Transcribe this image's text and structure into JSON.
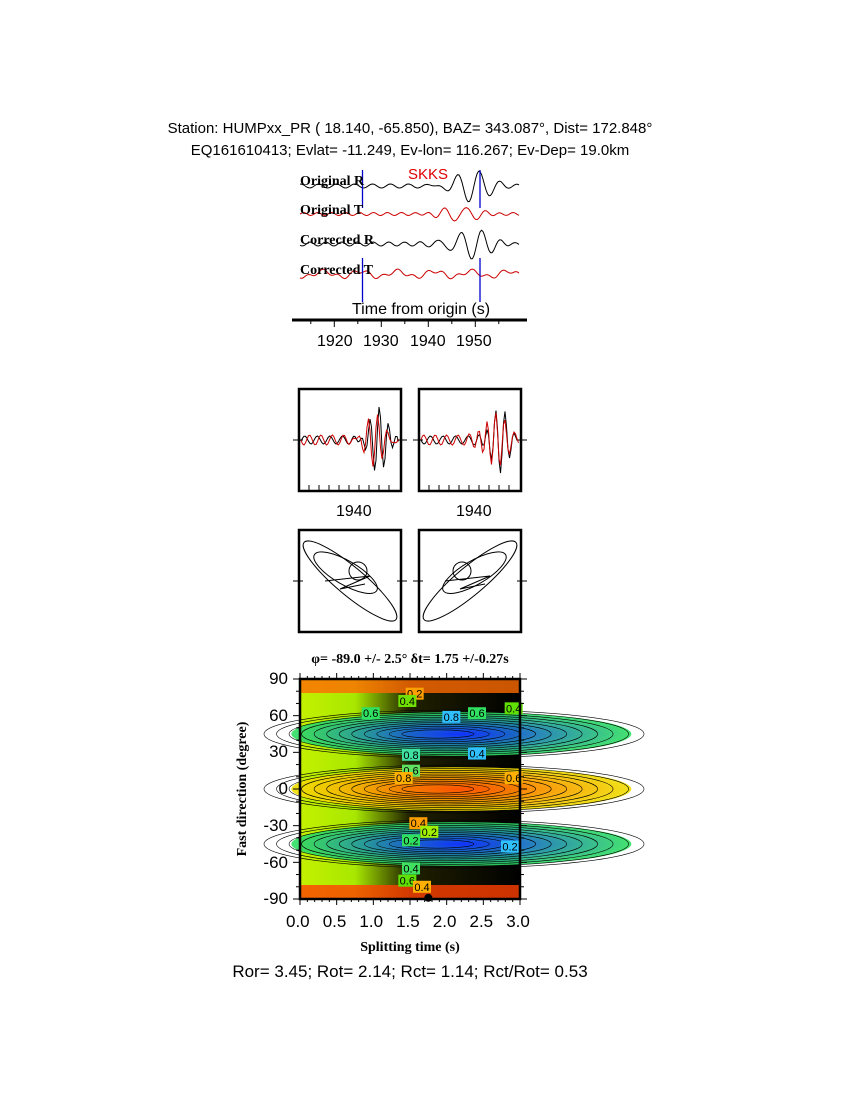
{
  "header": {
    "line1": "Station: HUMPxx_PR (  18.140,  -65.850), BAZ=  343.087°, Dist=  172.848°",
    "line2": "EQ161610413; Evlat= -11.249, Ev-lon= 116.267; Ev-Dep= 19.0km"
  },
  "chart_data": [
    {
      "type": "line",
      "title": "",
      "phase_label": "SKKS",
      "xlabel": "Time from origin (s)",
      "xticks": [
        "1920",
        "1930",
        "1940",
        "1950"
      ],
      "xlim": [
        1911,
        1961
      ],
      "series": [
        {
          "name": "Original R",
          "color": "#000000"
        },
        {
          "name": "Original T",
          "color": "#cc0000"
        },
        {
          "name": "Corrected R",
          "color": "#000000"
        },
        {
          "name": "Corrected T",
          "color": "#cc0000"
        }
      ],
      "window_markers_s": [
        1926,
        1951
      ],
      "marker_color": "#0000cc"
    },
    {
      "type": "line",
      "title": "",
      "panels": [
        "before correction",
        "after correction"
      ],
      "xticks": [
        "1940",
        "1940"
      ],
      "series_colors": [
        "#000000",
        "#cc0000"
      ]
    },
    {
      "type": "scatter",
      "title": "",
      "panels": [
        "particle motion original",
        "particle motion corrected"
      ]
    },
    {
      "type": "heatmap",
      "title": "φ= -89.0 +/- 2.5° δt= 1.75 +/-0.27s",
      "xlabel": "Splitting time (s)",
      "ylabel": "Fast direction (degree)",
      "xlim": [
        0,
        3
      ],
      "ylim": [
        -90,
        90
      ],
      "xticks": [
        "0.0",
        "0.5",
        "1.0",
        "1.5",
        "2.0",
        "2.5",
        "3.0"
      ],
      "yticks": [
        "90",
        "60",
        "30",
        "0",
        "-30",
        "-60",
        "-90"
      ],
      "contour_labels": [
        "0.2",
        "0.4",
        "0.6",
        "0.8",
        "0.6",
        "0.4",
        "0.4",
        "0.8",
        "0.6",
        "0.8",
        "0.6",
        "0.4",
        "0.2",
        "0.2",
        "0.2",
        "0.4",
        "0.6",
        "0.4",
        "0.8",
        "0.2",
        "0.2"
      ],
      "best_fit": {
        "phi": -89.0,
        "dt": 1.75
      }
    }
  ],
  "footer": "Ror= 3.45; Rot= 2.14; Rct= 1.14; Rct/Rot= 0.53"
}
